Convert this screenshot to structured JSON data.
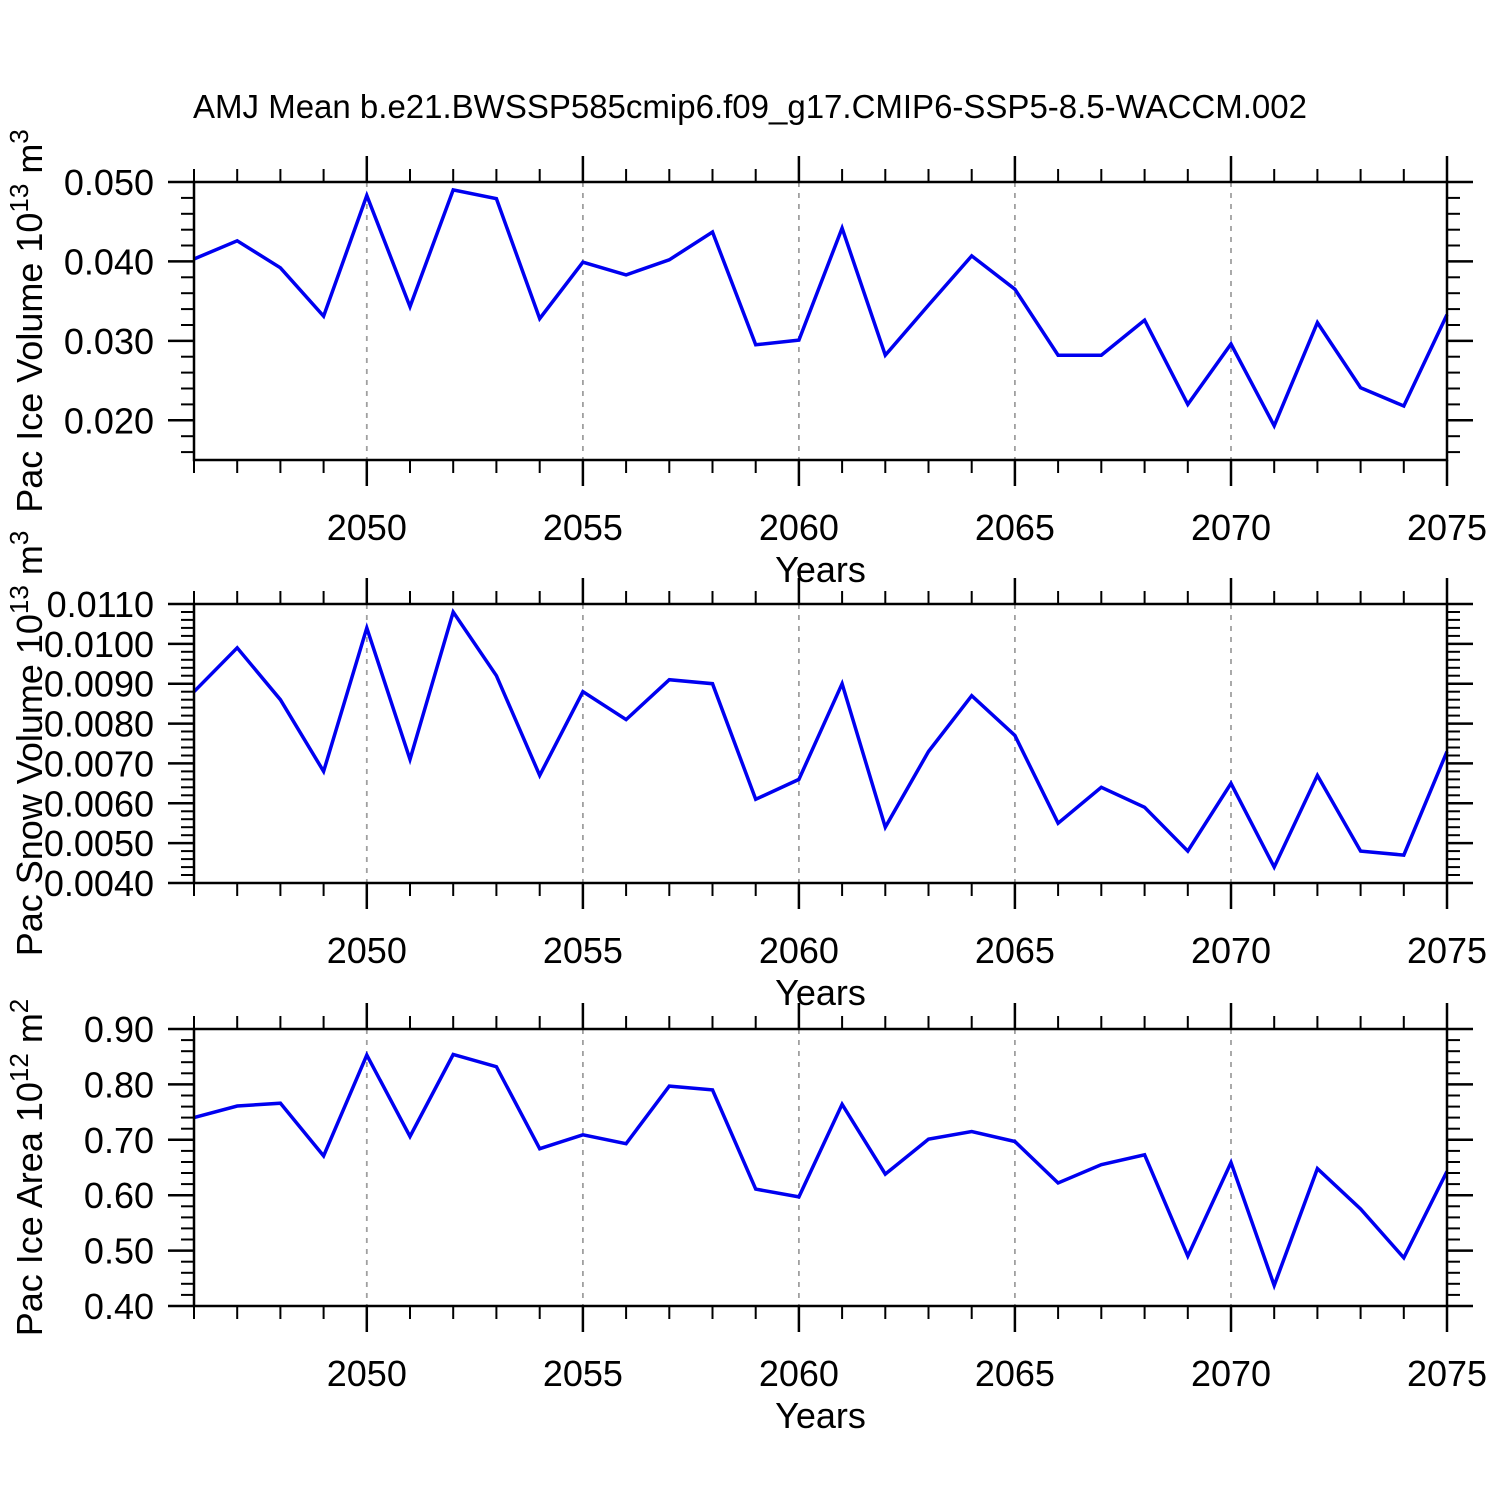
{
  "title": "AMJ Mean b.e21.BWSSP585cmip6.f09_g17.CMIP6-SSP5-8.5-WACCM.002",
  "colors": {
    "line": "#0000f0",
    "axis": "#000000",
    "grid": "#a0a0a0",
    "text": "#000000",
    "background": "#ffffff"
  },
  "x_axis": {
    "label": "Years",
    "min": 2046,
    "max": 2075,
    "major_ticks": [
      2050,
      2055,
      2060,
      2065,
      2070,
      2075
    ],
    "minor_step": 1,
    "grid_years": [
      2050,
      2055,
      2060,
      2065,
      2070
    ]
  },
  "years": [
    2046,
    2047,
    2048,
    2049,
    2050,
    2051,
    2052,
    2053,
    2054,
    2055,
    2056,
    2057,
    2058,
    2059,
    2060,
    2061,
    2062,
    2063,
    2064,
    2065,
    2066,
    2067,
    2068,
    2069,
    2070,
    2071,
    2072,
    2073,
    2074,
    2075
  ],
  "chart_data": [
    {
      "type": "line",
      "name": "pac-ice-volume",
      "ylabel": {
        "base": "Pac Ice Volume 10",
        "exp": "13",
        "unit": " m",
        "unit_exp": "3"
      },
      "ylim": [
        0.015,
        0.05
      ],
      "ytick_values": [
        0.02,
        0.03,
        0.04,
        0.05
      ],
      "ytick_labels": [
        "0.020",
        "0.030",
        "0.040",
        "0.050"
      ],
      "yminor_step": 0.002,
      "values": [
        0.0403,
        0.0426,
        0.0392,
        0.0331,
        0.0483,
        0.0343,
        0.049,
        0.0479,
        0.0328,
        0.0399,
        0.0383,
        0.0402,
        0.0437,
        0.0295,
        0.0301,
        0.0442,
        0.0282,
        0.0345,
        0.0407,
        0.0365,
        0.0282,
        0.0282,
        0.0326,
        0.022,
        0.0296,
        0.0193,
        0.0323,
        0.0241,
        0.0218,
        0.0333
      ]
    },
    {
      "type": "line",
      "name": "pac-snow-volume",
      "ylabel": {
        "base": "Pac Snow Volume 10",
        "exp": "13",
        "unit": " m",
        "unit_exp": "3"
      },
      "ylim": [
        0.004,
        0.011
      ],
      "ytick_values": [
        0.004,
        0.005,
        0.006,
        0.007,
        0.008,
        0.009,
        0.01,
        0.011
      ],
      "ytick_labels": [
        "0.0040",
        "0.0050",
        "0.0060",
        "0.0070",
        "0.0080",
        "0.0090",
        "0.0100",
        "0.0110"
      ],
      "yminor_step": 0.0002,
      "values": [
        0.0088,
        0.0099,
        0.0086,
        0.0068,
        0.0104,
        0.0071,
        0.0108,
        0.0092,
        0.0067,
        0.0088,
        0.0081,
        0.0091,
        0.009,
        0.0061,
        0.0066,
        0.009,
        0.0054,
        0.0073,
        0.0087,
        0.0077,
        0.0055,
        0.0064,
        0.0059,
        0.0048,
        0.0065,
        0.0044,
        0.0067,
        0.0048,
        0.0047,
        0.0073
      ]
    },
    {
      "type": "line",
      "name": "pac-ice-area",
      "ylabel": {
        "base": "Pac Ice Area 10",
        "exp": "12",
        "unit": " m",
        "unit_exp": "2"
      },
      "ylim": [
        0.4,
        0.9
      ],
      "ytick_values": [
        0.4,
        0.5,
        0.6,
        0.7,
        0.8,
        0.9
      ],
      "ytick_labels": [
        "0.40",
        "0.50",
        "0.60",
        "0.70",
        "0.80",
        "0.90"
      ],
      "yminor_step": 0.02,
      "values": [
        0.74,
        0.761,
        0.766,
        0.671,
        0.853,
        0.706,
        0.854,
        0.832,
        0.684,
        0.709,
        0.693,
        0.797,
        0.79,
        0.611,
        0.597,
        0.764,
        0.638,
        0.701,
        0.715,
        0.697,
        0.622,
        0.655,
        0.673,
        0.49,
        0.659,
        0.437,
        0.648,
        0.575,
        0.487,
        0.643
      ]
    }
  ]
}
